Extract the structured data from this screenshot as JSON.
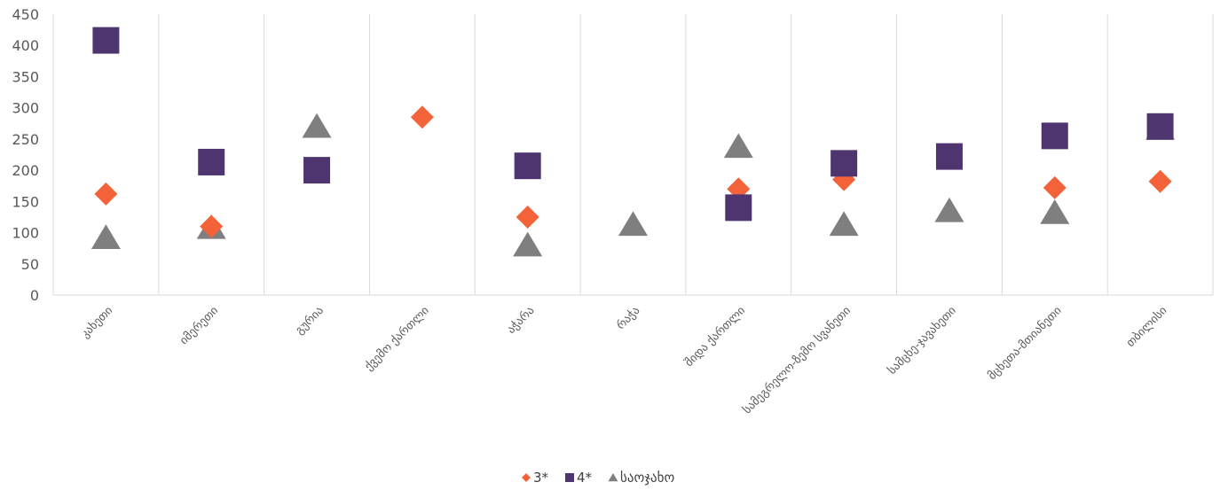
{
  "chart_data": {
    "type": "scatter",
    "title": "",
    "xlabel": "",
    "ylabel": "",
    "ylim": [
      0,
      450
    ],
    "yticks": [
      0,
      50,
      100,
      150,
      200,
      250,
      300,
      350,
      400,
      450
    ],
    "grid": "vertical",
    "legend_position": "bottom",
    "categories": [
      "კახეთი",
      "იმერეთი",
      "გურია",
      "ქვემო ქართლი",
      "აჭარა",
      "რაჭა",
      "შიდა ქართლი",
      "სამეგრელო-ზემო სვანეთი",
      "სამცხე-ჯავახეთი",
      "მცხეთა-მთიანეთი",
      "თბილისი"
    ],
    "series": [
      {
        "name": "3*",
        "marker": "diamond",
        "color": "#F4623A",
        "values": [
          162,
          110,
          null,
          285,
          125,
          null,
          170,
          185,
          null,
          172,
          182
        ]
      },
      {
        "name": "4*",
        "marker": "square",
        "color": "#4F3570",
        "values": [
          408,
          213,
          200,
          null,
          207,
          null,
          140,
          211,
          222,
          255,
          270
        ]
      },
      {
        "name": "საოჯახო",
        "marker": "triangle",
        "color": "#7F7F7F",
        "values": [
          92,
          108,
          270,
          null,
          80,
          113,
          238,
          113,
          135,
          132,
          267
        ]
      }
    ]
  }
}
